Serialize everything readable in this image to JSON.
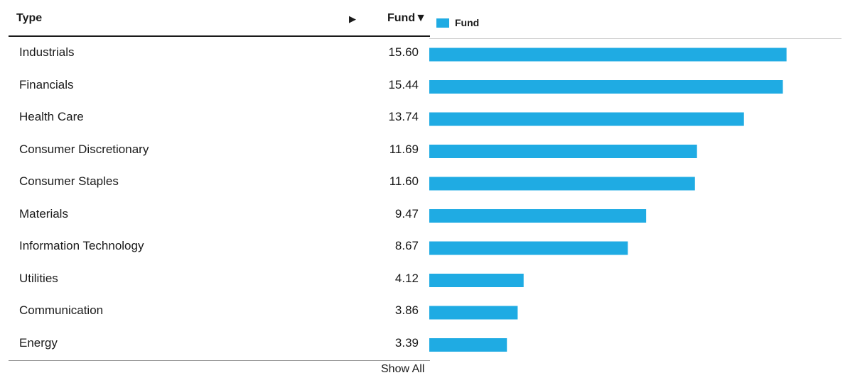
{
  "table": {
    "col_type_label": "Type",
    "col_arrow_glyph": "▶",
    "col_fund_label": "Fund▼",
    "show_all_label": "Show All"
  },
  "legend": {
    "label": "Fund",
    "color": "#1fabe3"
  },
  "chart_data": {
    "type": "bar",
    "orientation": "horizontal",
    "categories": [
      "Industrials",
      "Financials",
      "Health Care",
      "Consumer Discretionary",
      "Consumer Staples",
      "Materials",
      "Information Technology",
      "Utilities",
      "Communication",
      "Energy"
    ],
    "series": [
      {
        "name": "Fund",
        "values": [
          15.6,
          15.44,
          13.74,
          11.69,
          11.6,
          9.47,
          8.67,
          4.12,
          3.86,
          3.39
        ],
        "labels": [
          "15.60",
          "15.44",
          "13.74",
          "11.69",
          "11.60",
          "9.47",
          "8.67",
          "4.12",
          "3.86",
          "3.39"
        ]
      }
    ],
    "xlim": [
      0,
      18
    ],
    "grid": false,
    "legend_position": "top-left"
  }
}
